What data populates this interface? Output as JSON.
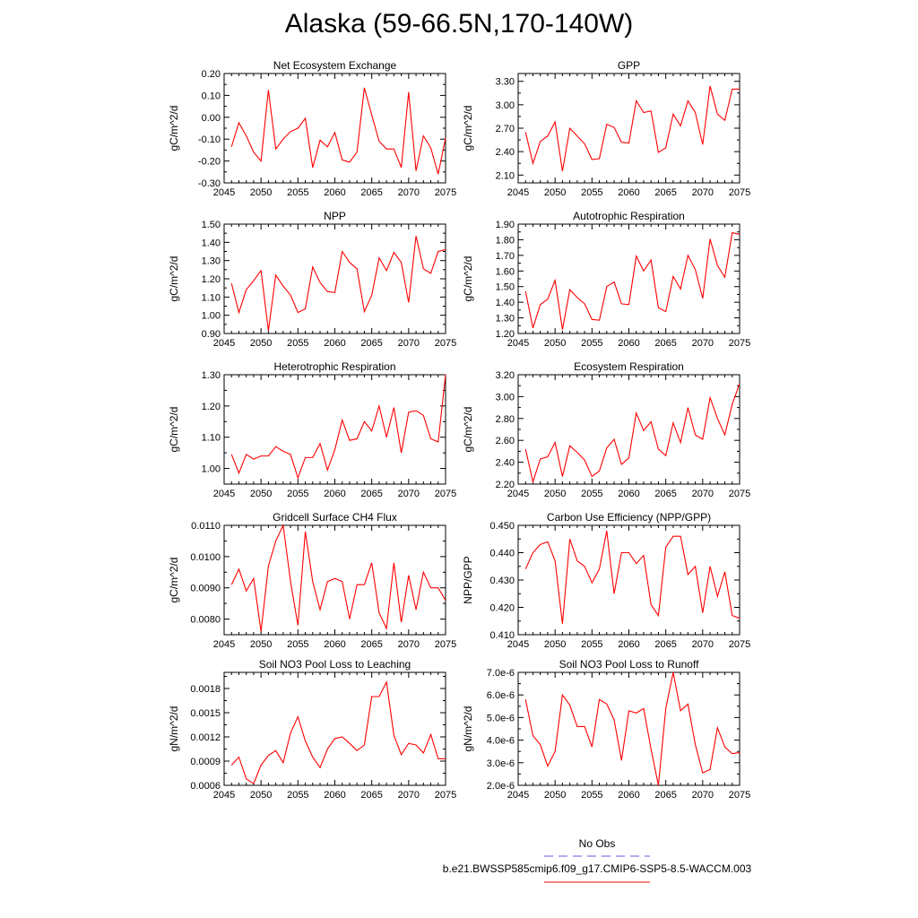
{
  "figure": {
    "title": "Alaska (59-66.5N,170-140W)",
    "line_color": "#ff0000",
    "obs_color": "#5b5bdb"
  },
  "legend": {
    "obs_label": "No Obs",
    "model_label": "b.e21.BWSSP585cmip6.f09_g17.CMIP6-SSP5-8.5-WACCM.003"
  },
  "chart_data": [
    {
      "type": "line",
      "title": "Net Ecosystem Exchange",
      "ylabel": "gC/m^2/d",
      "xlim": [
        2045,
        2075
      ],
      "ylim": [
        -0.3,
        0.2
      ],
      "xticks": [
        "2045",
        "2050",
        "2055",
        "2060",
        "2065",
        "2070",
        "2075"
      ],
      "yticks": [
        "-0.30",
        "-0.20",
        "-0.10",
        "0.00",
        "0.10",
        "0.20"
      ],
      "x": [
        2046,
        2047,
        2048,
        2049,
        2050,
        2051,
        2052,
        2053,
        2054,
        2055,
        2056,
        2057,
        2058,
        2059,
        2060,
        2061,
        2062,
        2063,
        2064,
        2065,
        2066,
        2067,
        2068,
        2069,
        2070,
        2071,
        2072,
        2073,
        2074,
        2075
      ],
      "series": [
        {
          "values": [
            -0.135,
            -0.025,
            -0.085,
            -0.16,
            -0.2,
            0.125,
            -0.145,
            -0.1,
            -0.065,
            -0.05,
            -0.005,
            -0.23,
            -0.105,
            -0.135,
            -0.07,
            -0.195,
            -0.205,
            -0.16,
            0.135,
            0.01,
            -0.11,
            -0.145,
            -0.145,
            -0.23,
            0.115,
            -0.245,
            -0.085,
            -0.14,
            -0.26,
            -0.095
          ]
        }
      ]
    },
    {
      "type": "line",
      "title": "GPP",
      "ylabel": "gC/m^2/d",
      "xlim": [
        2045,
        2075
      ],
      "ylim": [
        2.0,
        3.4
      ],
      "xticks": [
        "2045",
        "2050",
        "2055",
        "2060",
        "2065",
        "2070",
        "2075"
      ],
      "yticks": [
        "2.10",
        "2.40",
        "2.70",
        "3.00",
        "3.30"
      ],
      "x": [
        2046,
        2047,
        2048,
        2049,
        2050,
        2051,
        2052,
        2053,
        2054,
        2055,
        2056,
        2057,
        2058,
        2059,
        2060,
        2061,
        2062,
        2063,
        2064,
        2065,
        2066,
        2067,
        2068,
        2069,
        2070,
        2071,
        2072,
        2073,
        2074,
        2075
      ],
      "series": [
        {
          "values": [
            2.65,
            2.25,
            2.53,
            2.6,
            2.78,
            2.15,
            2.7,
            2.6,
            2.5,
            2.3,
            2.31,
            2.75,
            2.71,
            2.52,
            2.51,
            3.05,
            2.9,
            2.92,
            2.39,
            2.45,
            2.88,
            2.73,
            3.05,
            2.9,
            2.49,
            3.24,
            2.88,
            2.8,
            3.2,
            3.2
          ]
        }
      ]
    },
    {
      "type": "line",
      "title": "NPP",
      "ylabel": "gC/m^2/d",
      "xlim": [
        2045,
        2075
      ],
      "ylim": [
        0.9,
        1.5
      ],
      "xticks": [
        "2045",
        "2050",
        "2055",
        "2060",
        "2065",
        "2070",
        "2075"
      ],
      "yticks": [
        "0.90",
        "1.00",
        "1.10",
        "1.20",
        "1.30",
        "1.40",
        "1.50"
      ],
      "x": [
        2046,
        2047,
        2048,
        2049,
        2050,
        2051,
        2052,
        2053,
        2054,
        2055,
        2056,
        2057,
        2058,
        2059,
        2060,
        2061,
        2062,
        2063,
        2064,
        2065,
        2066,
        2067,
        2068,
        2069,
        2070,
        2071,
        2072,
        2073,
        2074,
        2075
      ],
      "series": [
        {
          "values": [
            1.175,
            1.015,
            1.14,
            1.19,
            1.245,
            0.915,
            1.22,
            1.16,
            1.11,
            1.015,
            1.035,
            1.265,
            1.18,
            1.13,
            1.125,
            1.35,
            1.29,
            1.255,
            1.02,
            1.11,
            1.315,
            1.245,
            1.345,
            1.29,
            1.07,
            1.435,
            1.255,
            1.23,
            1.35,
            1.36
          ]
        }
      ]
    },
    {
      "type": "line",
      "title": "Autotrophic Respiration",
      "ylabel": "gC/m^2/d",
      "xlim": [
        2045,
        2075
      ],
      "ylim": [
        1.2,
        1.9
      ],
      "xticks": [
        "2045",
        "2050",
        "2055",
        "2060",
        "2065",
        "2070",
        "2075"
      ],
      "yticks": [
        "1.20",
        "1.30",
        "1.40",
        "1.50",
        "1.60",
        "1.70",
        "1.80",
        "1.90"
      ],
      "x": [
        2046,
        2047,
        2048,
        2049,
        2050,
        2051,
        2052,
        2053,
        2054,
        2055,
        2056,
        2057,
        2058,
        2059,
        2060,
        2061,
        2062,
        2063,
        2064,
        2065,
        2066,
        2067,
        2068,
        2069,
        2070,
        2071,
        2072,
        2073,
        2074,
        2075
      ],
      "series": [
        {
          "values": [
            1.47,
            1.235,
            1.385,
            1.42,
            1.54,
            1.225,
            1.48,
            1.43,
            1.39,
            1.29,
            1.285,
            1.5,
            1.53,
            1.39,
            1.385,
            1.695,
            1.6,
            1.67,
            1.365,
            1.34,
            1.565,
            1.485,
            1.7,
            1.61,
            1.425,
            1.805,
            1.635,
            1.56,
            1.845,
            1.835
          ]
        }
      ]
    },
    {
      "type": "line",
      "title": "Heterotrophic Respiration",
      "ylabel": "gC/m^2/d",
      "xlim": [
        2045,
        2075
      ],
      "ylim": [
        0.95,
        1.3
      ],
      "xticks": [
        "2045",
        "2050",
        "2055",
        "2060",
        "2065",
        "2070",
        "2075"
      ],
      "yticks": [
        "1.00",
        "1.10",
        "1.20",
        "1.30"
      ],
      "x": [
        2046,
        2047,
        2048,
        2049,
        2050,
        2051,
        2052,
        2053,
        2054,
        2055,
        2056,
        2057,
        2058,
        2059,
        2060,
        2061,
        2062,
        2063,
        2064,
        2065,
        2066,
        2067,
        2068,
        2069,
        2070,
        2071,
        2072,
        2073,
        2074,
        2075
      ],
      "series": [
        {
          "values": [
            1.045,
            0.985,
            1.045,
            1.03,
            1.04,
            1.04,
            1.07,
            1.055,
            1.045,
            0.97,
            1.035,
            1.035,
            1.08,
            0.995,
            1.06,
            1.155,
            1.09,
            1.095,
            1.15,
            1.12,
            1.2,
            1.1,
            1.195,
            1.05,
            1.18,
            1.185,
            1.17,
            1.095,
            1.085,
            1.3
          ]
        }
      ]
    },
    {
      "type": "line",
      "title": "Ecosystem Respiration",
      "ylabel": "gC/m^2/d",
      "xlim": [
        2045,
        2075
      ],
      "ylim": [
        2.2,
        3.2
      ],
      "xticks": [
        "2045",
        "2050",
        "2055",
        "2060",
        "2065",
        "2070",
        "2075"
      ],
      "yticks": [
        "2.20",
        "2.40",
        "2.60",
        "2.80",
        "3.00",
        "3.20"
      ],
      "x": [
        2046,
        2047,
        2048,
        2049,
        2050,
        2051,
        2052,
        2053,
        2054,
        2055,
        2056,
        2057,
        2058,
        2059,
        2060,
        2061,
        2062,
        2063,
        2064,
        2065,
        2066,
        2067,
        2068,
        2069,
        2070,
        2071,
        2072,
        2073,
        2074,
        2075
      ],
      "series": [
        {
          "values": [
            2.52,
            2.22,
            2.43,
            2.45,
            2.58,
            2.27,
            2.55,
            2.49,
            2.42,
            2.27,
            2.32,
            2.53,
            2.61,
            2.38,
            2.44,
            2.85,
            2.69,
            2.77,
            2.52,
            2.46,
            2.76,
            2.58,
            2.9,
            2.65,
            2.61,
            2.99,
            2.8,
            2.65,
            2.93,
            3.12
          ]
        }
      ]
    },
    {
      "type": "line",
      "title": "Gridcell Surface CH4 Flux",
      "ylabel": "gC/m^2/d",
      "xlim": [
        2045,
        2075
      ],
      "ylim": [
        0.0075,
        0.011
      ],
      "xticks": [
        "2045",
        "2050",
        "2055",
        "2060",
        "2065",
        "2070",
        "2075"
      ],
      "yticks": [
        "0.0080",
        "0.0090",
        "0.0100",
        "0.0110"
      ],
      "x": [
        2046,
        2047,
        2048,
        2049,
        2050,
        2051,
        2052,
        2053,
        2054,
        2055,
        2056,
        2057,
        2058,
        2059,
        2060,
        2061,
        2062,
        2063,
        2064,
        2065,
        2066,
        2067,
        2068,
        2069,
        2070,
        2071,
        2072,
        2073,
        2074,
        2075
      ],
      "series": [
        {
          "values": [
            0.0091,
            0.0096,
            0.0089,
            0.0093,
            0.0076,
            0.0097,
            0.0105,
            0.011,
            0.0092,
            0.0078,
            0.0108,
            0.0092,
            0.0083,
            0.0092,
            0.0093,
            0.0092,
            0.008,
            0.0091,
            0.0091,
            0.0098,
            0.0082,
            0.0077,
            0.0098,
            0.0079,
            0.0094,
            0.0083,
            0.0095,
            0.009,
            0.009,
            0.0086
          ]
        }
      ]
    },
    {
      "type": "line",
      "title": "Carbon Use Efficiency (NPP/GPP)",
      "ylabel": "NPP/GPP",
      "xlim": [
        2045,
        2075
      ],
      "ylim": [
        0.41,
        0.45
      ],
      "xticks": [
        "2045",
        "2050",
        "2055",
        "2060",
        "2065",
        "2070",
        "2075"
      ],
      "yticks": [
        "0.410",
        "0.420",
        "0.430",
        "0.440",
        "0.450"
      ],
      "x": [
        2046,
        2047,
        2048,
        2049,
        2050,
        2051,
        2052,
        2053,
        2054,
        2055,
        2056,
        2057,
        2058,
        2059,
        2060,
        2061,
        2062,
        2063,
        2064,
        2065,
        2066,
        2067,
        2068,
        2069,
        2070,
        2071,
        2072,
        2073,
        2074,
        2075
      ],
      "series": [
        {
          "values": [
            0.434,
            0.44,
            0.443,
            0.444,
            0.437,
            0.414,
            0.445,
            0.437,
            0.435,
            0.429,
            0.434,
            0.448,
            0.425,
            0.44,
            0.44,
            0.436,
            0.439,
            0.421,
            0.417,
            0.442,
            0.446,
            0.446,
            0.432,
            0.435,
            0.418,
            0.435,
            0.424,
            0.433,
            0.417,
            0.416
          ]
        }
      ]
    },
    {
      "type": "line",
      "title": "Soil NO3 Pool Loss to Leaching",
      "ylabel": "gN/m^2/d",
      "xlim": [
        2045,
        2075
      ],
      "ylim": [
        0.0006,
        0.002
      ],
      "xticks": [
        "2045",
        "2050",
        "2055",
        "2060",
        "2065",
        "2070",
        "2075"
      ],
      "yticks": [
        "0.0006",
        "0.0009",
        "0.0012",
        "0.0015",
        "0.0018"
      ],
      "x": [
        2046,
        2047,
        2048,
        2049,
        2050,
        2051,
        2052,
        2053,
        2054,
        2055,
        2056,
        2057,
        2058,
        2059,
        2060,
        2061,
        2062,
        2063,
        2064,
        2065,
        2066,
        2067,
        2068,
        2069,
        2070,
        2071,
        2072,
        2073,
        2074,
        2075
      ],
      "series": [
        {
          "values": [
            0.00085,
            0.00095,
            0.00068,
            0.00062,
            0.00085,
            0.00097,
            0.00103,
            0.00088,
            0.00125,
            0.00145,
            0.00115,
            0.00095,
            0.00082,
            0.00105,
            0.00118,
            0.0012,
            0.00112,
            0.00103,
            0.0011,
            0.0017,
            0.0017,
            0.00188,
            0.00122,
            0.00098,
            0.00112,
            0.0011,
            0.001,
            0.00123,
            0.00093,
            0.00093
          ]
        }
      ]
    },
    {
      "type": "line",
      "title": "Soil NO3 Pool Loss to Runoff",
      "ylabel": "gN/m^2/d",
      "xlim": [
        2045,
        2075
      ],
      "ylim": [
        2e-06,
        7e-06
      ],
      "xticks": [
        "2045",
        "2050",
        "2055",
        "2060",
        "2065",
        "2070",
        "2075"
      ],
      "yticks": [
        "2.0e-6",
        "3.0e-6",
        "4.0e-6",
        "5.0e-6",
        "6.0e-6",
        "7.0e-6"
      ],
      "x": [
        2046,
        2047,
        2048,
        2049,
        2050,
        2051,
        2052,
        2053,
        2054,
        2055,
        2056,
        2057,
        2058,
        2059,
        2060,
        2061,
        2062,
        2063,
        2064,
        2065,
        2066,
        2067,
        2068,
        2069,
        2070,
        2071,
        2072,
        2073,
        2074,
        2075
      ],
      "series": [
        {
          "values": [
            5.8e-06,
            4.2e-06,
            3.8e-06,
            2.85e-06,
            3.5e-06,
            6e-06,
            5.55e-06,
            4.6e-06,
            4.6e-06,
            3.7e-06,
            5.8e-06,
            5.6e-06,
            4.9e-06,
            3.1e-06,
            5.3e-06,
            5.2e-06,
            5.4e-06,
            3.6e-06,
            2e-06,
            5.4e-06,
            7e-06,
            5.3e-06,
            5.6e-06,
            3.8e-06,
            2.55e-06,
            2.7e-06,
            4.55e-06,
            3.7e-06,
            3.4e-06,
            3.45e-06
          ]
        }
      ]
    }
  ]
}
